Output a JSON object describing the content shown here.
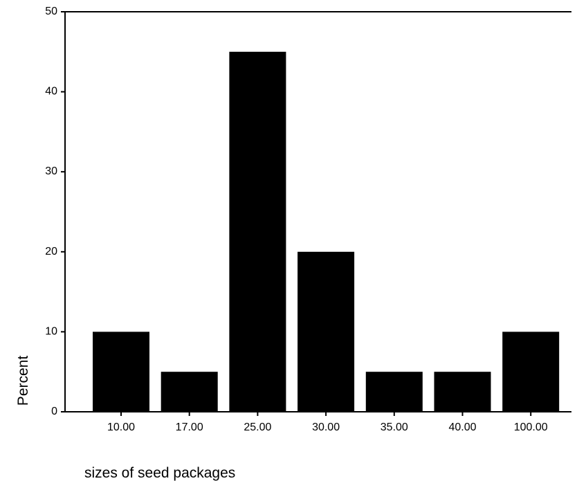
{
  "chart_data": {
    "type": "bar",
    "categories": [
      "10.00",
      "17.00",
      "25.00",
      "30.00",
      "35.00",
      "40.00",
      "100.00"
    ],
    "values": [
      10,
      5,
      45,
      20,
      5,
      5,
      10
    ],
    "title": "",
    "xlabel": "sizes of seed packages",
    "ylabel": "Percent",
    "ylim": [
      0,
      50
    ],
    "yticks": [
      "0",
      "10",
      "20",
      "30",
      "40",
      "50"
    ],
    "bar_color": "#000000",
    "grid": false,
    "legend": "none"
  }
}
